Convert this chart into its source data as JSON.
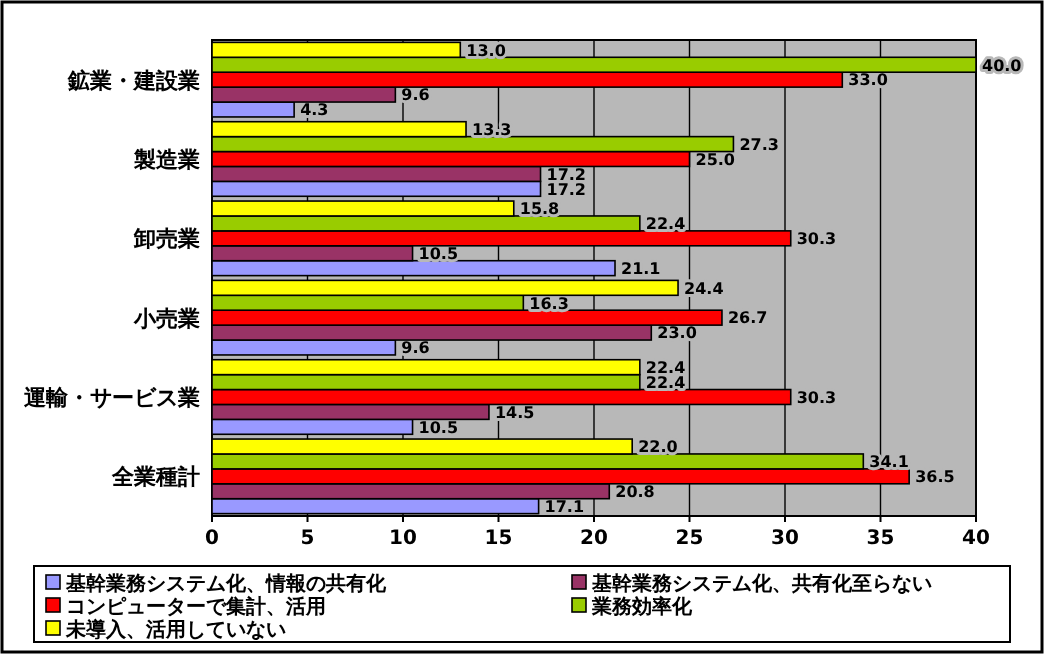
{
  "chart_data": {
    "type": "bar",
    "orientation": "horizontal",
    "categories": [
      "鉱業・建設業",
      "製造業",
      "卸売業",
      "小売業",
      "運輸・サービス業",
      "全業種計"
    ],
    "series": [
      {
        "name": "基幹業務システム化、情報の共有化",
        "color": "#9999ff",
        "values": [
          4.3,
          17.2,
          21.1,
          9.6,
          10.5,
          17.1
        ],
        "value_labels": [
          "4.3",
          "17.2",
          "21.1",
          "9.6",
          "10.5",
          "17.1"
        ]
      },
      {
        "name": "基幹業務システム化、共有化至らない",
        "color": "#993366",
        "values": [
          9.6,
          17.2,
          10.5,
          23.0,
          14.5,
          20.8
        ],
        "value_labels": [
          "9.6",
          "17.2",
          "10.5",
          "23.0",
          "14.5",
          "20.8"
        ]
      },
      {
        "name": "コンピューターで集計、活用",
        "color": "#ff0000",
        "values": [
          33.0,
          25.0,
          30.3,
          26.7,
          30.3,
          36.5
        ],
        "value_labels": [
          "33.0",
          "25.0",
          "30.3",
          "26.7",
          "30.3",
          "36.5"
        ]
      },
      {
        "name": "業務効率化",
        "color": "#99cc00",
        "values": [
          40.0,
          27.3,
          22.4,
          16.3,
          22.4,
          34.1
        ],
        "value_labels": [
          "40.0",
          "27.3",
          "22.4",
          "16.3",
          "22.4",
          "34.1"
        ]
      },
      {
        "name": "未導入、活用していない",
        "color": "#ffff00",
        "values": [
          13.0,
          13.3,
          15.8,
          24.4,
          22.4,
          22.0
        ],
        "value_labels": [
          "13.0",
          "13.3",
          "15.8",
          "24.4",
          "22.4",
          "22.0"
        ]
      }
    ],
    "xlim": [
      0,
      40
    ],
    "xticks": [
      0,
      5,
      10,
      15,
      20,
      25,
      30,
      35,
      40
    ],
    "grid": "x",
    "legend": "bottom",
    "data_labels": true
  }
}
